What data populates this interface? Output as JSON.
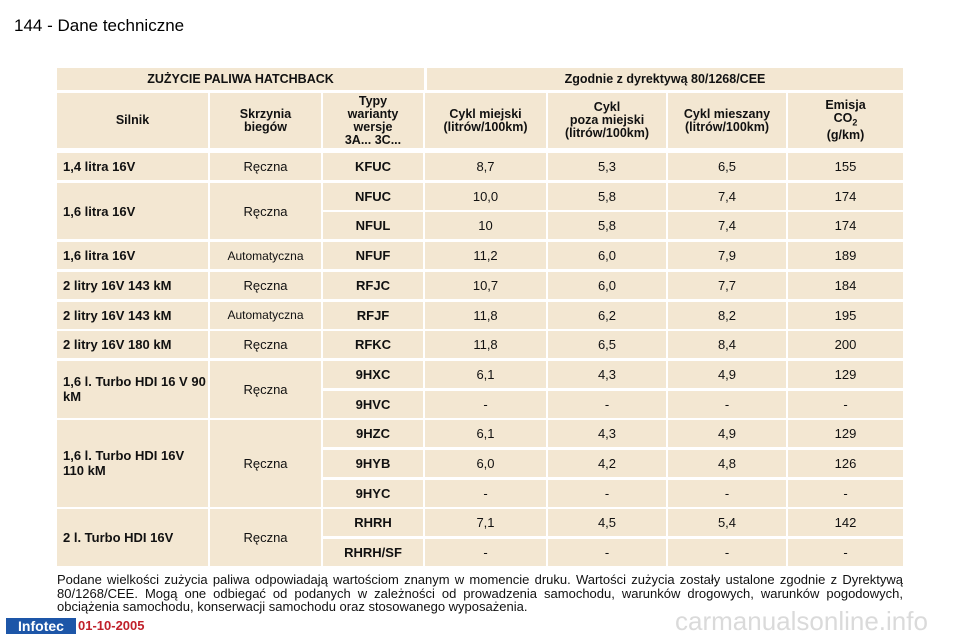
{
  "header": {
    "title": "144 - Dane techniczne"
  },
  "table": {
    "title_left": "ZUŻYCIE PALIWA HATCHBACK",
    "title_right": "Zgodnie z dyrektywą 80/1268/CEE",
    "headers": [
      [
        "Silnik"
      ],
      [
        "Skrzynia",
        "biegów"
      ],
      [
        "Typy",
        "warianty",
        "wersje",
        "3A... 3C..."
      ],
      [
        "Cykl miejski",
        "(litrów/100km)"
      ],
      [
        "Cykl",
        "poza miejski",
        "(litrów/100km)"
      ],
      [
        "Cykl mieszany",
        "(litrów/100km)"
      ]
    ],
    "emission_header": {
      "line1": "Emisja",
      "co": "CO",
      "sub": "2",
      "unit": "(g/km)"
    },
    "groups": [
      {
        "engine": "1,4 litra 16V",
        "gearbox": "Ręczna",
        "variants": [
          {
            "type": "KFUC",
            "values": [
              "8,7",
              "5,3",
              "6,5",
              "155"
            ]
          }
        ]
      },
      {
        "engine": "1,6 litra 16V",
        "gearbox": "Ręczna",
        "variants": [
          {
            "type": "NFUC",
            "values": [
              "10,0",
              "5,8",
              "7,4",
              "174"
            ]
          },
          {
            "type": "NFUL",
            "values": [
              "10",
              "5,8",
              "7,4",
              "174"
            ]
          }
        ]
      },
      {
        "engine": "1,6 litra 16V",
        "gearbox": "Automatyczna",
        "variants": [
          {
            "type": "NFUF",
            "values": [
              "11,2",
              "6,0",
              "7,9",
              "189"
            ]
          }
        ]
      },
      {
        "engine": "2 litry 16V 143 kM",
        "gearbox": "Ręczna",
        "variants": [
          {
            "type": "RFJC",
            "values": [
              "10,7",
              "6,0",
              "7,7",
              "184"
            ]
          }
        ]
      },
      {
        "engine": "2 litry 16V 143 kM",
        "gearbox": "Automatyczna",
        "variants": [
          {
            "type": "RFJF",
            "values": [
              "11,8",
              "6,2",
              "8,2",
              "195"
            ]
          }
        ]
      },
      {
        "engine": "2 litry 16V 180 kM",
        "gearbox": "Ręczna",
        "variants": [
          {
            "type": "RFKC",
            "values": [
              "11,8",
              "6,5",
              "8,4",
              "200"
            ]
          }
        ]
      },
      {
        "engine": "1,6 l. Turbo HDI 16 V 90 kM",
        "gearbox": "Ręczna",
        "variants": [
          {
            "type": "9HXC",
            "values": [
              "6,1",
              "4,3",
              "4,9",
              "129"
            ]
          },
          {
            "type": "9HVC",
            "values": [
              "-",
              "-",
              "-",
              "-"
            ]
          }
        ]
      },
      {
        "engine": "1,6 l. Turbo HDI 16V 110 kM",
        "gearbox": "Ręczna",
        "variants": [
          {
            "type": "9HZC",
            "values": [
              "6,1",
              "4,3",
              "4,9",
              "129"
            ]
          },
          {
            "type": "9HYB",
            "values": [
              "6,0",
              "4,2",
              "4,8",
              "126"
            ]
          },
          {
            "type": "9HYC",
            "values": [
              "-",
              "-",
              "-",
              "-"
            ]
          }
        ]
      },
      {
        "engine": "2 l. Turbo HDI 16V",
        "gearbox": "Ręczna",
        "variants": [
          {
            "type": "RHRH",
            "values": [
              "7,1",
              "4,5",
              "5,4",
              "142"
            ]
          },
          {
            "type": "RHRH/SF",
            "values": [
              "-",
              "-",
              "-",
              "-"
            ]
          }
        ]
      }
    ]
  },
  "note": "Podane wielkości zużycia paliwa odpowiadają wartościom znanym w momencie druku. Wartości zużycia zostały ustalone zgodnie z Dyrektywą 80/1268/CEE. Mogą one odbiegać od podanych w zależności od prowadzenia samochodu, warunków drogowych, warunków pogodowych, obciążenia samochodu, konserwacji samochodu oraz stosowanego wyposażenia.",
  "footer": {
    "logo": "Infotec",
    "date": "01-10-2005"
  },
  "watermark": "carmanualsonline.info"
}
